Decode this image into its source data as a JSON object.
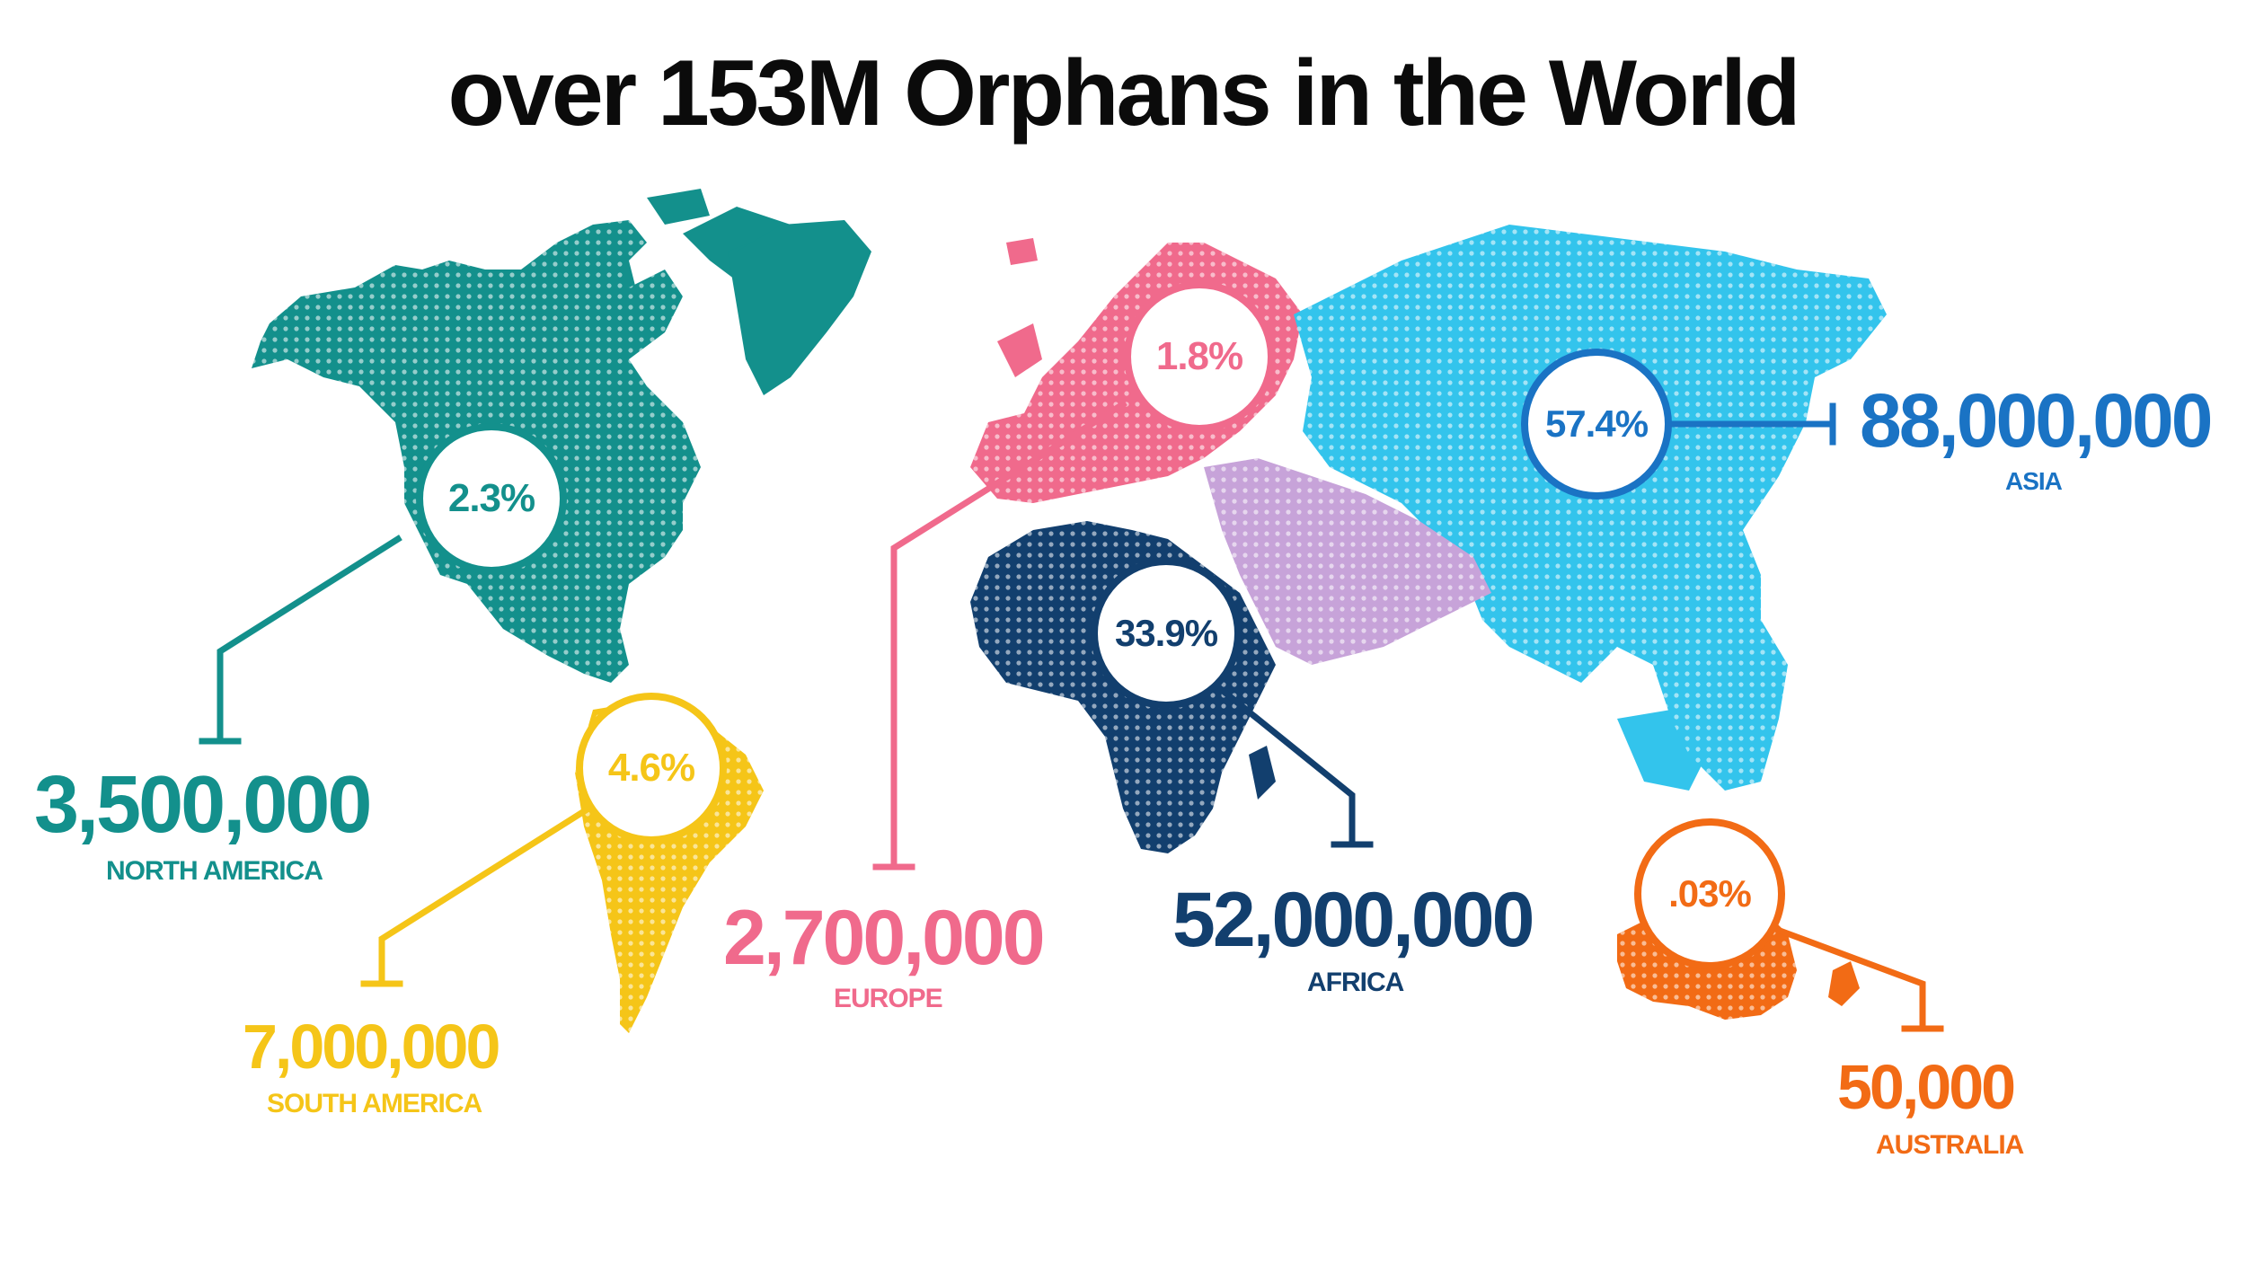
{
  "title": "over 153M Orphans in the World",
  "regions": {
    "north_america": {
      "name": "NORTH AMERICA",
      "count": "3,500,000",
      "percent": "2.3%",
      "color": "#13908c"
    },
    "south_america": {
      "name": "SOUTH AMERICA",
      "count": "7,000,000",
      "percent": "4.6%",
      "color": "#f5c518"
    },
    "europe": {
      "name": "EUROPE",
      "count": "2,700,000",
      "percent": "1.8%",
      "color": "#f06a8c"
    },
    "africa": {
      "name": "AFRICA",
      "count": "52,000,000",
      "percent": "33.9%",
      "color": "#123f6e"
    },
    "asia": {
      "name": "ASIA",
      "count": "88,000,000",
      "percent": "57.4%",
      "color": "#1a73c4"
    },
    "australia": {
      "name": "AUSTRALIA",
      "count": "50,000",
      "percent": ".03%",
      "color": "#f26b15"
    }
  },
  "other_colors": {
    "asia_land": "#33c4ec",
    "middle_east_land": "#c7a3d9"
  }
}
